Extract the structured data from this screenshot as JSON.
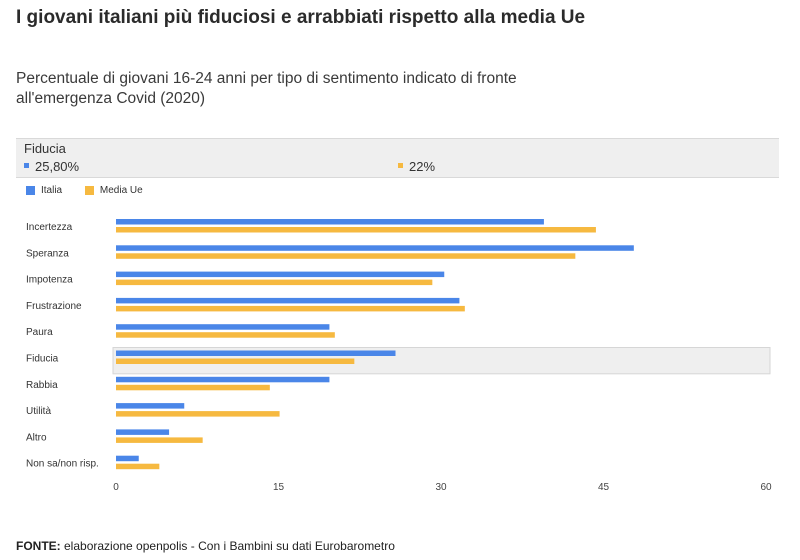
{
  "title": "I giovani italiani più fiduciosi e arrabbiati rispetto alla media Ue",
  "subtitle": "Percentuale di giovani 16-24 anni per tipo di sentimento indicato di fronte all'emergenza Covid (2020)",
  "tooltip": {
    "category": "Fiducia",
    "italia_value": "25,80%",
    "ue_value": "22%"
  },
  "colors": {
    "italia": "#4a86e8",
    "media_ue": "#f6b940",
    "highlight": "#efefef"
  },
  "chart_data": {
    "type": "bar",
    "orientation": "horizontal",
    "categories": [
      "Incertezza",
      "Speranza",
      "Impotenza",
      "Frustrazione",
      "Paura",
      "Fiducia",
      "Rabbia",
      "Utilità",
      "Altro",
      "Non sa/non risp."
    ],
    "series": [
      {
        "name": "Italia",
        "values": [
          39.5,
          47.8,
          30.3,
          31.7,
          19.7,
          25.8,
          19.7,
          6.3,
          4.9,
          2.1
        ]
      },
      {
        "name": "Media Ue",
        "values": [
          44.3,
          42.4,
          29.2,
          32.2,
          20.2,
          22.0,
          14.2,
          15.1,
          8.0,
          4.0
        ]
      }
    ],
    "highlighted_category": "Fiducia",
    "xlim": [
      0,
      60
    ],
    "xticks": [
      "0",
      "15",
      "30",
      "45",
      "60"
    ],
    "legend_position": "top-left",
    "grid": false
  },
  "footer": {
    "label": "FONTE:",
    "text": " elaborazione openpolis - Con i Bambini su dati Eurobarometro"
  }
}
